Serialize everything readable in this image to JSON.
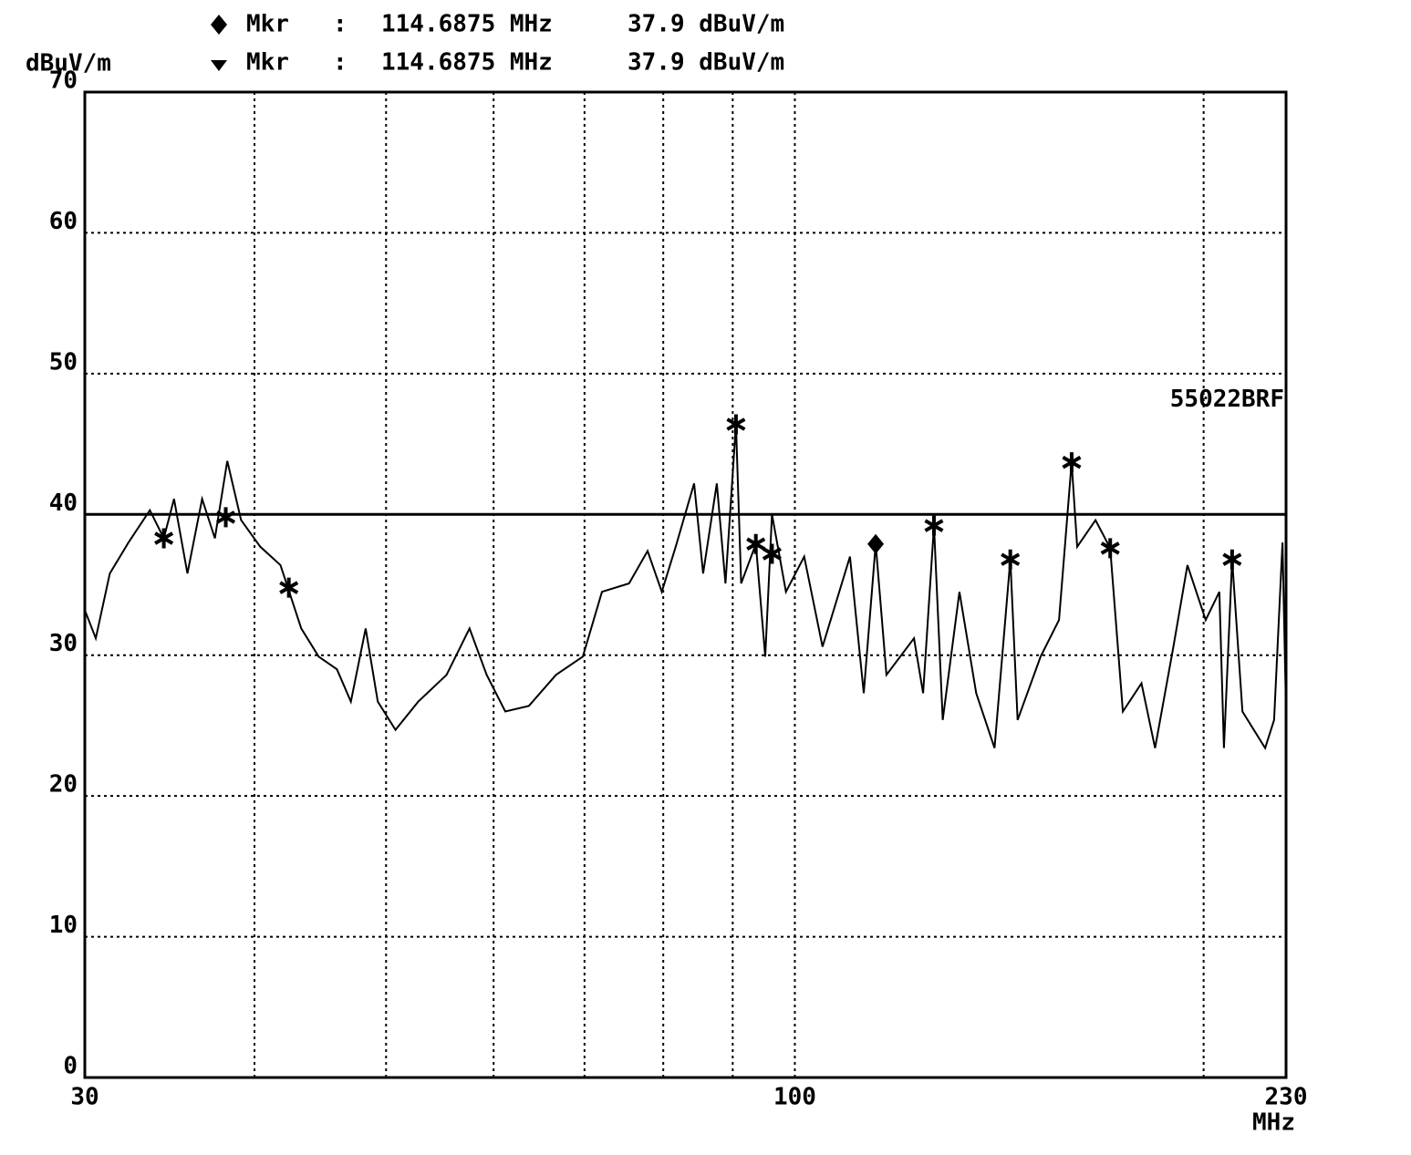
{
  "chart_data": {
    "type": "line",
    "y_label": "dBuV/m",
    "x_label": "MHz",
    "x_log": true,
    "grid": true,
    "xlim": [
      30,
      230
    ],
    "ylim": [
      0,
      70
    ],
    "xticks": [
      30,
      100,
      230
    ],
    "x_minor_grid": [
      40,
      50,
      60,
      70,
      80,
      90,
      200
    ],
    "yticks": [
      0,
      10,
      20,
      30,
      40,
      50,
      60,
      70
    ],
    "marker_readouts": [
      {
        "symbol": "diamond",
        "label": "Mkr",
        "separator": ":",
        "frequency": "114.6875 MHz",
        "level": "37.9 dBuV/m"
      },
      {
        "symbol": "triangle",
        "label": "Mkr",
        "separator": ":",
        "frequency": "114.6875 MHz",
        "level": "37.9 dBuV/m"
      }
    ],
    "limit_line": {
      "value": 40,
      "label": "55022BRF"
    },
    "series": [
      {
        "name": "trace",
        "color": "#000000",
        "x": [
          30,
          30.56,
          31.3,
          32.3,
          33.5,
          34.3,
          34.9,
          35.7,
          36.6,
          37.4,
          38.2,
          39.1,
          40.4,
          41.8,
          43.3,
          44.6,
          46.0,
          47.1,
          48.3,
          49.3,
          50.8,
          52.8,
          55.4,
          57.6,
          59.3,
          61.2,
          63.7,
          66.7,
          69.8,
          72.1,
          75.5,
          77.9,
          79.8,
          81.7,
          84.3,
          85.6,
          87.6,
          88.9,
          90.5,
          91.3,
          93.6,
          95.1,
          96.2,
          98.5,
          101.6,
          104.8,
          109.8,
          112.4,
          114.7,
          116.8,
          122.4,
          124.3,
          126.6,
          128.5,
          132.2,
          136.0,
          140.3,
          144.1,
          145.9,
          151.7,
          156.5,
          159.9,
          161.4,
          166.5,
          170.7,
          174.4,
          180.0,
          184.2,
          190.0,
          194.6,
          200.7,
          205.4,
          207.0,
          209.9,
          213.6,
          222.0,
          225.4,
          228.6,
          230
        ],
        "values": [
          33.2,
          31.2,
          35.8,
          38.0,
          40.3,
          38.3,
          41.1,
          35.8,
          41.1,
          38.3,
          43.8,
          39.6,
          37.7,
          36.4,
          31.9,
          29.9,
          29.0,
          26.7,
          31.9,
          26.7,
          24.7,
          26.7,
          28.6,
          31.9,
          28.6,
          26.0,
          26.4,
          28.6,
          29.9,
          34.5,
          35.1,
          37.4,
          34.5,
          37.7,
          42.2,
          35.8,
          42.2,
          35.1,
          46.4,
          35.1,
          37.9,
          29.9,
          40.0,
          34.5,
          37.0,
          30.6,
          37.0,
          27.3,
          37.9,
          28.6,
          31.2,
          27.3,
          39.2,
          25.4,
          34.5,
          27.3,
          23.4,
          36.8,
          25.4,
          29.9,
          32.5,
          43.7,
          37.7,
          39.6,
          37.6,
          26.0,
          28.0,
          23.4,
          30.6,
          36.4,
          32.5,
          34.5,
          23.4,
          36.8,
          26.0,
          23.4,
          25.4,
          38.0,
          26.0
        ]
      }
    ],
    "peak_markers": {
      "x": [
        34.3,
        38.1,
        42.4,
        90.5,
        93.6,
        96.2,
        126.6,
        144.1,
        159.9,
        170.7,
        209.9
      ],
      "values": [
        38.3,
        39.8,
        34.8,
        46.4,
        37.9,
        37.2,
        39.2,
        36.8,
        43.7,
        37.6,
        36.8
      ]
    },
    "active_marker": {
      "x": 114.6875,
      "value": 37.9
    }
  }
}
